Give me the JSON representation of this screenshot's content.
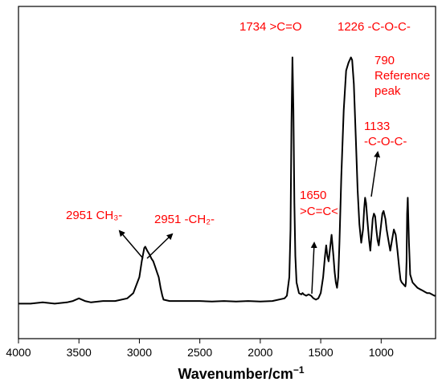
{
  "chart_data": {
    "type": "line",
    "title": "",
    "xlabel": "Wavenumber/cm",
    "xlabel_superscript": "−1",
    "ylabel": "",
    "xlim": [
      4000,
      550
    ],
    "x_reversed": true,
    "y_axis_labels_shown": false,
    "grid": false,
    "line_color": "#000000",
    "annotation_color": "#ff0000",
    "x_ticks": [
      {
        "value": 4000,
        "label": "4000"
      },
      {
        "value": 3500,
        "label": "3500"
      },
      {
        "value": 3000,
        "label": "3000"
      },
      {
        "value": 2500,
        "label": "2500"
      },
      {
        "value": 2000,
        "label": "2000"
      },
      {
        "value": 1500,
        "label": "1500"
      },
      {
        "value": 1000,
        "label": "1000"
      }
    ],
    "series": [
      {
        "x": [
          4000,
          3900,
          3800,
          3700,
          3600,
          3550,
          3500,
          3450,
          3400,
          3300,
          3200,
          3100,
          3050,
          3000,
          2980,
          2960,
          2951,
          2935,
          2915,
          2900,
          2885,
          2870,
          2855,
          2840,
          2825,
          2810,
          2800,
          2750,
          2700,
          2600,
          2500,
          2400,
          2300,
          2200,
          2100,
          2000,
          1900,
          1800,
          1780,
          1760,
          1750,
          1742,
          1734,
          1726,
          1718,
          1710,
          1700,
          1680,
          1660,
          1650,
          1640,
          1620,
          1600,
          1580,
          1560,
          1540,
          1520,
          1500,
          1480,
          1465,
          1455,
          1445,
          1435,
          1425,
          1410,
          1395,
          1385,
          1375,
          1365,
          1355,
          1345,
          1330,
          1310,
          1290,
          1270,
          1250,
          1240,
          1226,
          1210,
          1195,
          1180,
          1165,
          1150,
          1140,
          1133,
          1125,
          1115,
          1100,
          1090,
          1080,
          1070,
          1060,
          1050,
          1040,
          1030,
          1020,
          1010,
          1000,
          990,
          980,
          965,
          955,
          940,
          925,
          910,
          895,
          880,
          865,
          850,
          840,
          830,
          820,
          810,
          800,
          795,
          790,
          785,
          780,
          770,
          760,
          740,
          720,
          700,
          680,
          660,
          640,
          620,
          600,
          580,
          560,
          550
        ],
        "y": [
          0.02,
          0.02,
          0.025,
          0.02,
          0.025,
          0.03,
          0.04,
          0.03,
          0.025,
          0.03,
          0.03,
          0.04,
          0.06,
          0.12,
          0.18,
          0.23,
          0.235,
          0.22,
          0.205,
          0.19,
          0.18,
          0.16,
          0.14,
          0.12,
          0.08,
          0.05,
          0.035,
          0.03,
          0.03,
          0.03,
          0.03,
          0.028,
          0.03,
          0.028,
          0.03,
          0.028,
          0.03,
          0.04,
          0.05,
          0.12,
          0.3,
          0.7,
          0.95,
          0.75,
          0.4,
          0.2,
          0.1,
          0.06,
          0.055,
          0.06,
          0.055,
          0.05,
          0.055,
          0.05,
          0.04,
          0.035,
          0.04,
          0.06,
          0.12,
          0.2,
          0.24,
          0.2,
          0.18,
          0.22,
          0.28,
          0.2,
          0.14,
          0.1,
          0.08,
          0.12,
          0.25,
          0.5,
          0.75,
          0.9,
          0.93,
          0.95,
          0.94,
          0.85,
          0.65,
          0.45,
          0.32,
          0.25,
          0.3,
          0.38,
          0.42,
          0.4,
          0.34,
          0.26,
          0.22,
          0.28,
          0.34,
          0.36,
          0.35,
          0.3,
          0.26,
          0.24,
          0.28,
          0.32,
          0.36,
          0.37,
          0.34,
          0.3,
          0.26,
          0.22,
          0.26,
          0.3,
          0.28,
          0.22,
          0.15,
          0.11,
          0.1,
          0.095,
          0.09,
          0.085,
          0.1,
          0.18,
          0.36,
          0.42,
          0.25,
          0.13,
          0.1,
          0.09,
          0.08,
          0.075,
          0.07,
          0.065,
          0.06,
          0.06,
          0.055,
          0.05,
          0.05
        ]
      }
    ],
    "annotations": [
      {
        "lines": [
          "1734 >C=O"
        ]
      },
      {
        "lines": [
          "1226 -C-O-C-"
        ]
      },
      {
        "lines": [
          "790",
          "Reference",
          "peak"
        ]
      },
      {
        "lines": [
          "1133",
          "-C-O-C-"
        ]
      },
      {
        "lines": [
          "1650",
          ">C=C<"
        ]
      },
      {
        "lines": [
          "2951 CH₃-"
        ]
      },
      {
        "lines": [
          "2951 -CH₂-"
        ]
      }
    ]
  }
}
